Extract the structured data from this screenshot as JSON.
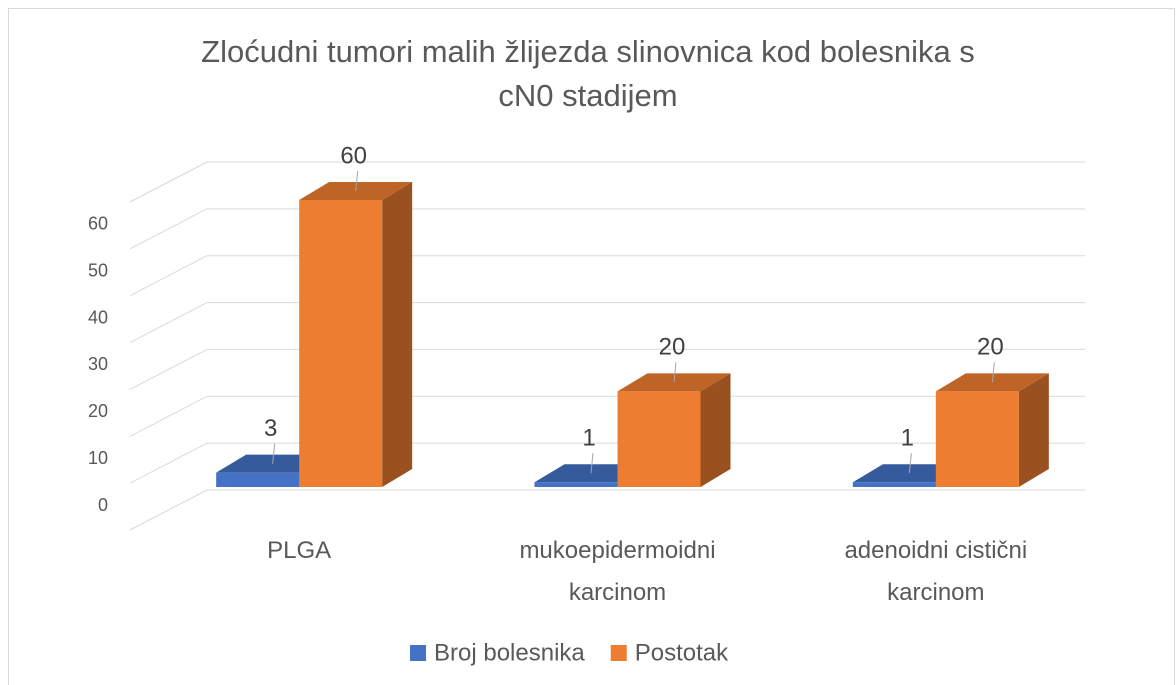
{
  "chart_data": {
    "type": "bar3d",
    "title": "Zloćudni tumori malih žlijezda slinovnica kod bolesnika s cN0 stadijem",
    "categories": [
      "PLGA",
      "mukoepidermoidni karcinom",
      "adenoidni cistični karcinom"
    ],
    "series": [
      {
        "name": "Broj bolesnika",
        "color": "#4472c4",
        "values": [
          3,
          1,
          1
        ]
      },
      {
        "name": "Postotak",
        "color": "#ed7d31",
        "values": [
          60,
          20,
          20
        ]
      }
    ],
    "ylim": [
      0,
      70
    ],
    "yticks": [
      0,
      10,
      20,
      30,
      40,
      50,
      60
    ],
    "grid": true,
    "legend": "bottom"
  }
}
